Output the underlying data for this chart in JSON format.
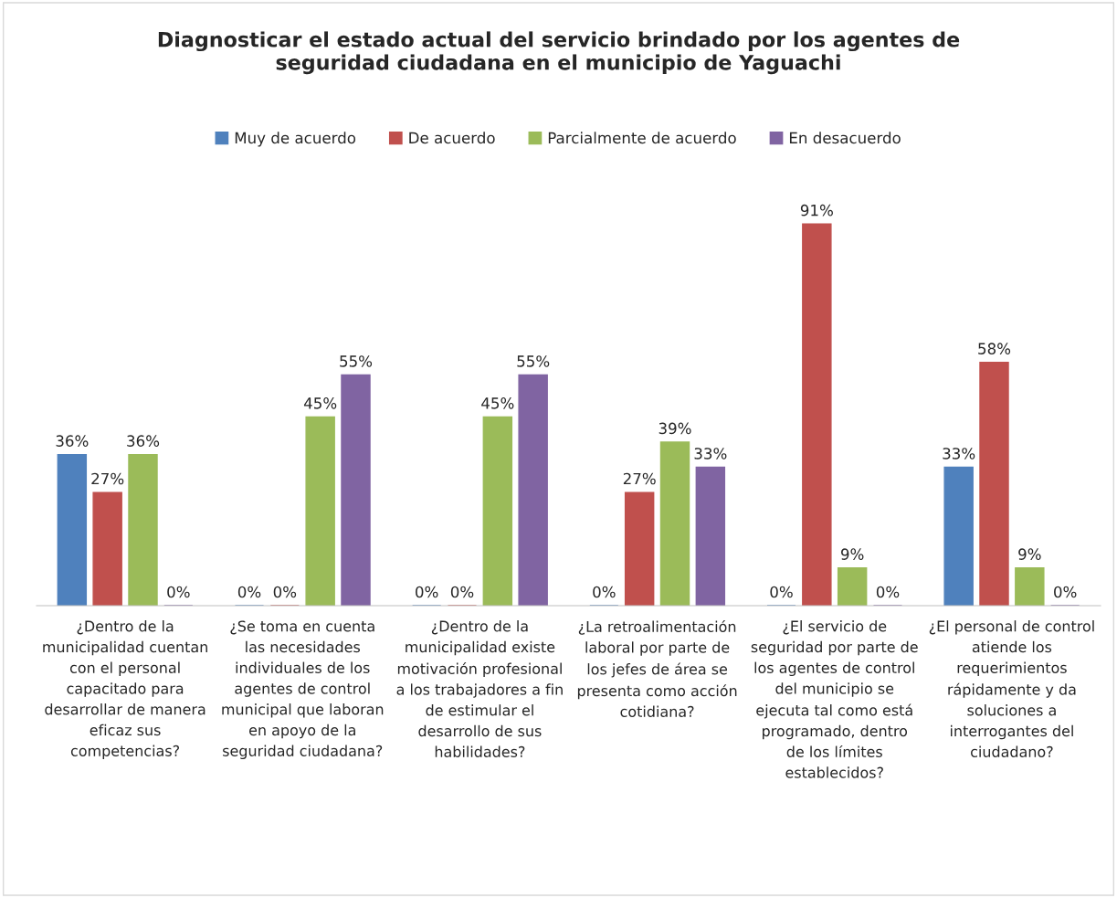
{
  "chart_data": {
    "type": "bar",
    "title": "Diagnosticar el estado actual del servicio brindado por los agentes de seguridad ciudadana en el municipio de Yaguachi",
    "categories": [
      "¿Dentro de la municipalidad cuentan con el personal capacitado para desarrollar de manera eficaz sus competencias?",
      "¿Se toma en cuenta las necesidades individuales de los agentes de control municipal que laboran en apoyo de la seguridad ciudadana?",
      "¿Dentro de la municipalidad existe motivación profesional a los trabajadores a fin de estimular el desarrollo de sus habilidades?",
      "¿La retroalimentación laboral por parte de los jefes de área se presenta como acción cotidiana?",
      "¿El servicio de seguridad por parte de los agentes de control del municipio se ejecuta tal como está programado, dentro de los límites establecidos?",
      "¿El personal de control atiende los requerimientos rápidamente y da soluciones a interrogantes del ciudadano?"
    ],
    "series": [
      {
        "name": "Muy de acuerdo",
        "color": "#4f81bd",
        "values": [
          36,
          0,
          0,
          0,
          0,
          33
        ],
        "value_labels": [
          "36%",
          "0%",
          "0%",
          "0%",
          "0%",
          "33%"
        ]
      },
      {
        "name": "De acuerdo",
        "color": "#c0504d",
        "values": [
          27,
          0,
          0,
          27,
          91,
          58
        ],
        "value_labels": [
          "27%",
          "0%",
          "0%",
          "27%",
          "91%",
          "58%"
        ]
      },
      {
        "name": "Parcialmente de acuerdo",
        "color": "#9bbb59",
        "values": [
          36,
          45,
          45,
          39,
          9,
          9
        ],
        "value_labels": [
          "36%",
          "45%",
          "45%",
          "39%",
          "9%",
          "9%"
        ]
      },
      {
        "name": "En desacuerdo",
        "color": "#8064a2",
        "values": [
          0,
          55,
          55,
          33,
          0,
          0
        ],
        "value_labels": [
          "0%",
          "55%",
          "55%",
          "33%",
          "0%",
          "0%"
        ]
      }
    ],
    "legend": "top"
  }
}
